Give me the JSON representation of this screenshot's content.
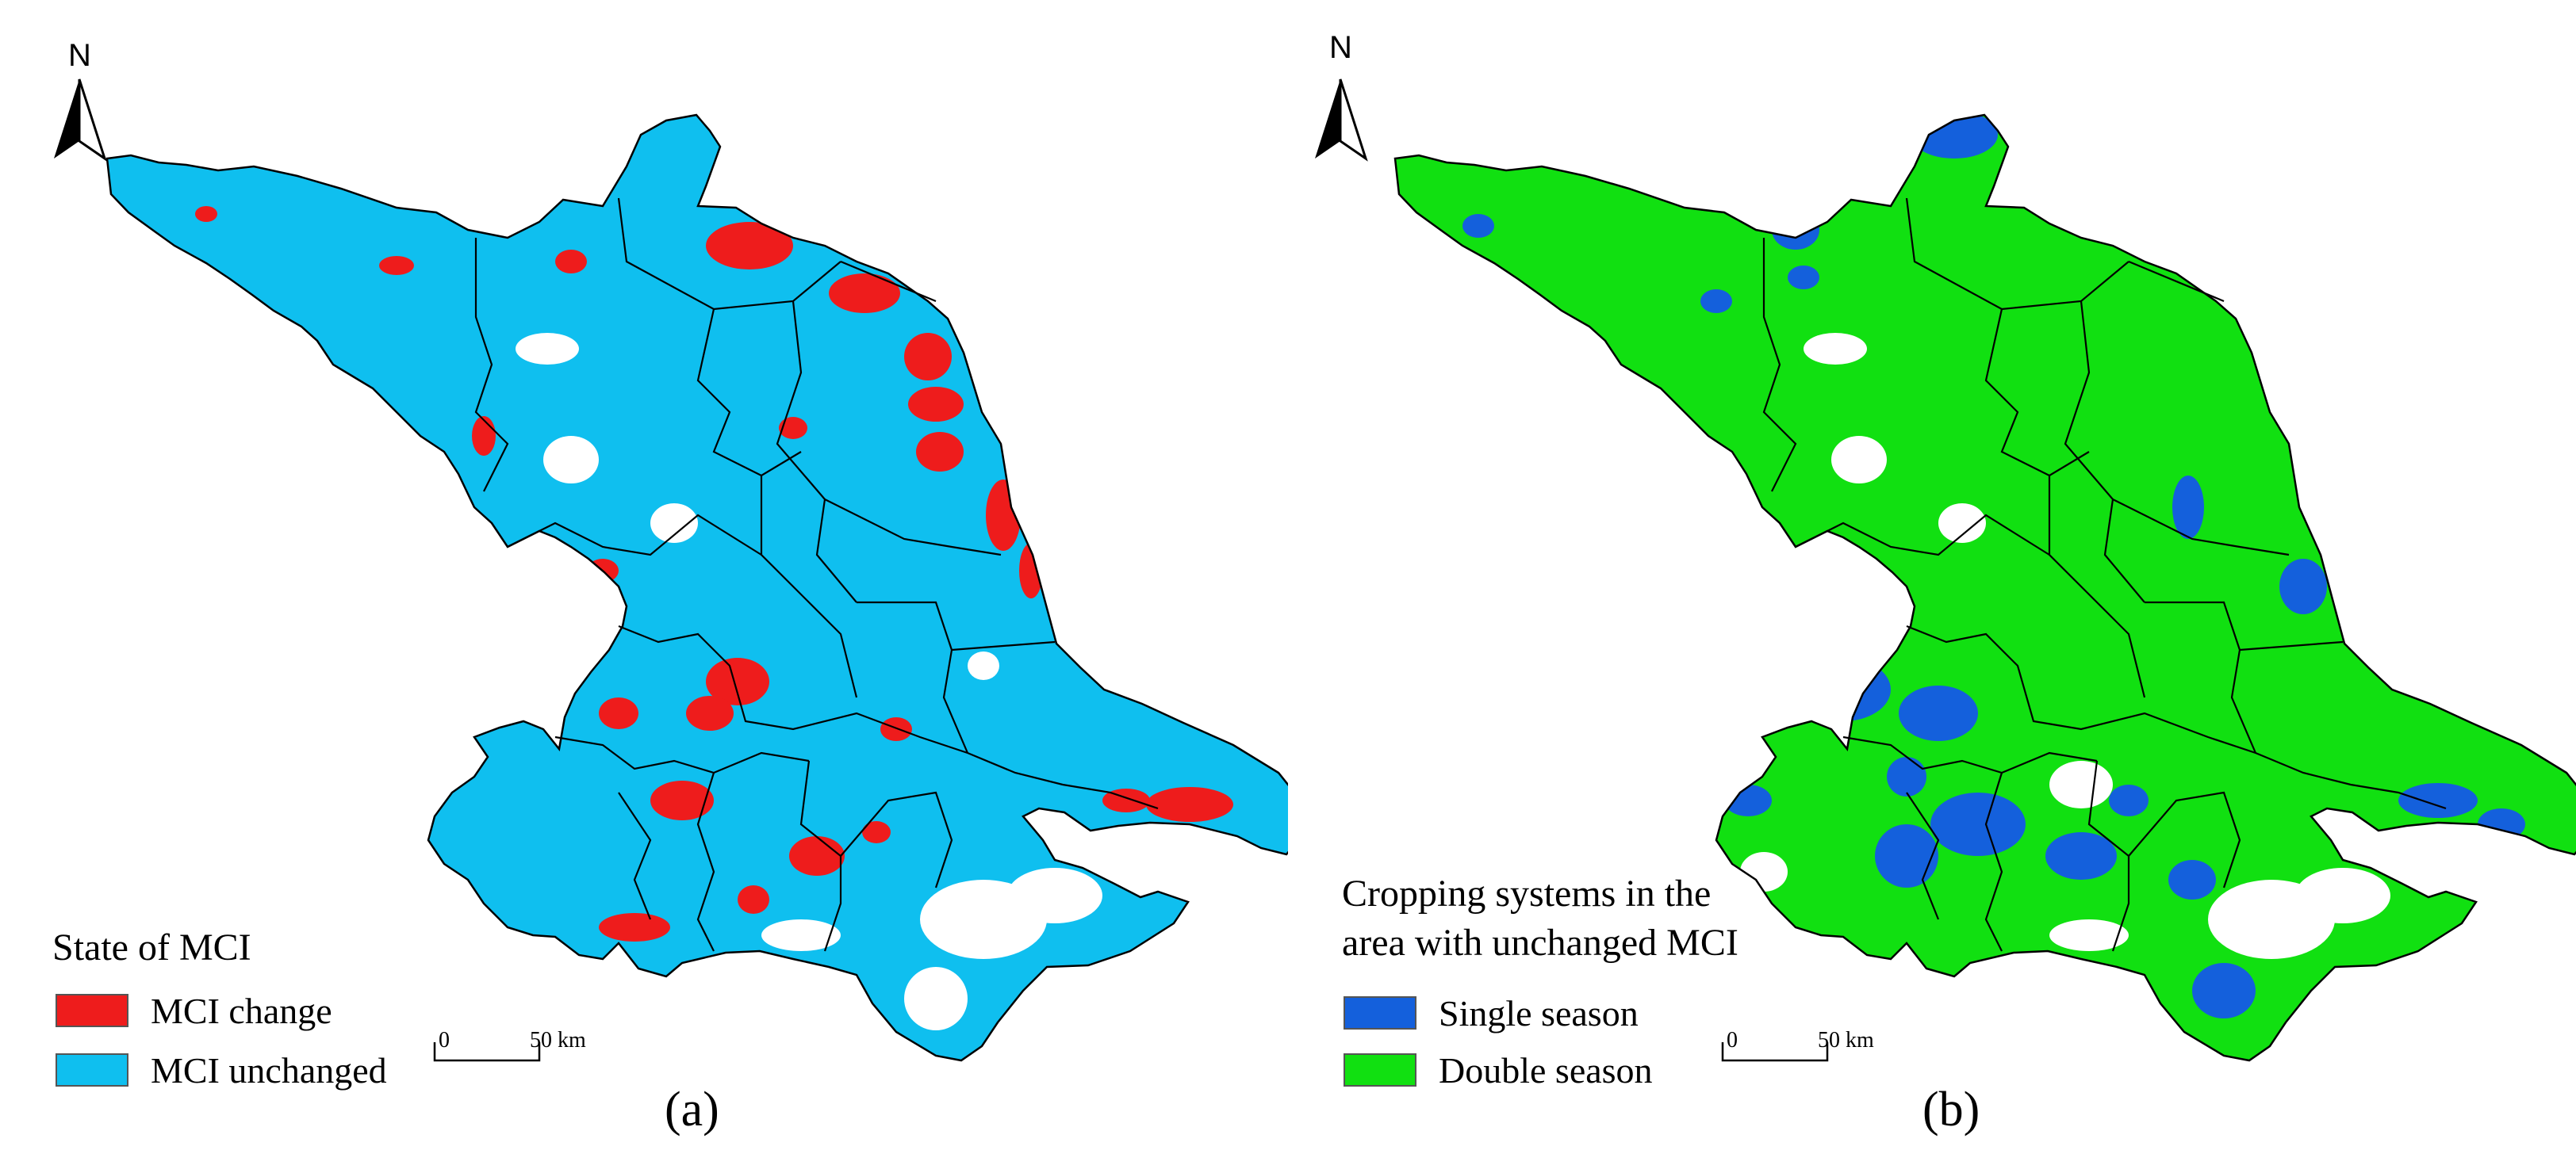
{
  "panels": [
    {
      "id": "a",
      "panel_label": "(a)",
      "north": "N",
      "legend": {
        "title": "State of MCI",
        "items": [
          {
            "label": "MCI change",
            "color": "#ee1c1c"
          },
          {
            "label": "MCI unchanged",
            "color": "#0fbfef"
          }
        ]
      },
      "scale": {
        "zero": "0",
        "end": "50 km"
      }
    },
    {
      "id": "b",
      "panel_label": "(b)",
      "north": "N",
      "legend": {
        "title_line1": "Cropping systems in the",
        "title_line2": "area with unchanged MCI",
        "items": [
          {
            "label": "Single season",
            "color": "#1460dc"
          },
          {
            "label": "Double season",
            "color": "#11e011"
          }
        ]
      },
      "scale": {
        "zero": "0",
        "end": "50 km"
      }
    }
  ],
  "colors": {
    "background": "#ffffff",
    "boundary": "#000000",
    "mci_change": "#ee1c1c",
    "mci_unchanged": "#0fbfef",
    "single_season": "#1460dc",
    "double_season": "#11e011"
  }
}
